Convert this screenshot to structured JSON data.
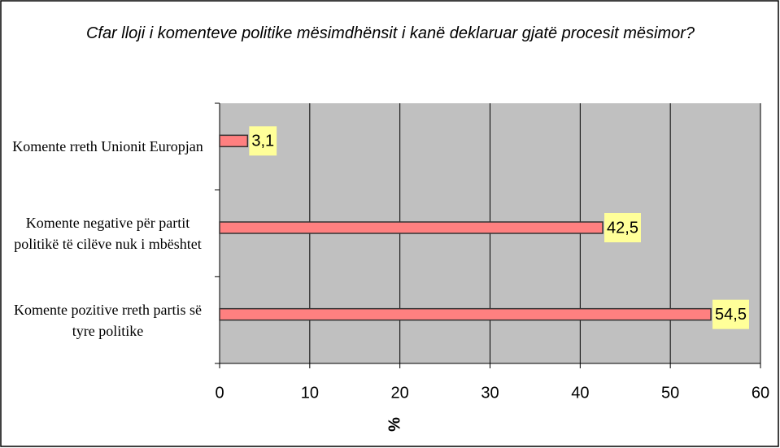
{
  "chart_data": {
    "type": "barh",
    "title": "Cfar lloji i komenteve politike  mësimdhënsit i kanë deklaruar  gjatë procesit mësimor?",
    "categories": [
      "Komente rreth Unionit Europjan",
      "Komente negative për partit politikë të cilëve nuk i mbështet",
      "Komente pozitive rreth partis së tyre politike"
    ],
    "values": [
      3.1,
      42.5,
      54.5
    ],
    "value_labels": [
      "3,1",
      "42,5",
      "54,5"
    ],
    "color": "#ff8080",
    "xlabel": "%",
    "xlim": [
      0,
      60
    ],
    "xticks": [
      0,
      10,
      20,
      30,
      40,
      50,
      60
    ],
    "grid": true
  }
}
